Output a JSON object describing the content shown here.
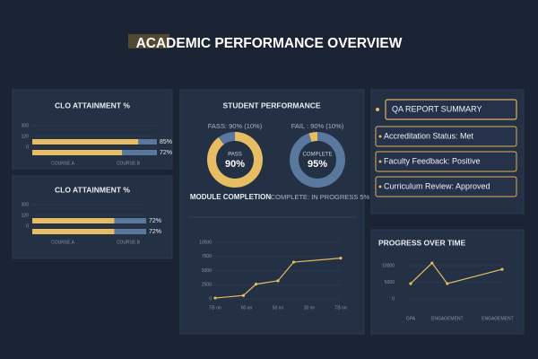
{
  "header": {
    "title": "ACADEMIC PERFORMANCE OVERVIEW"
  },
  "student_performance": {
    "title": "STUDENT PERFORMANCE"
  },
  "qa_summary": {
    "title": "QA REPORT SUMMARY",
    "items": [
      "Accreditation Status: Met",
      "Faculty Feedback: Positive",
      "Curriculum Review: Approved"
    ]
  },
  "chart_data": [
    {
      "type": "hbar",
      "title": "CLO ATTAINMENT %",
      "categories": [
        "COURSE A",
        "COURSE B"
      ],
      "values": [
        85,
        72
      ],
      "value_labels": [
        "85%",
        "72%"
      ],
      "xlim": [
        0,
        100
      ],
      "axis_labels": [
        "300",
        "120",
        "0"
      ],
      "color": "#e6bd62",
      "track_color": "#5a779d"
    },
    {
      "type": "hbar",
      "title": "CLO ATTAINMENT %",
      "categories": [
        "COURSE A",
        "COURSE B"
      ],
      "values": [
        72,
        72
      ],
      "value_labels": [
        "72%",
        "72%"
      ],
      "xlim": [
        0,
        100
      ],
      "axis_labels": [
        "300",
        "120",
        "0"
      ],
      "color": "#e6bd62",
      "track_color": "#5a779d"
    },
    {
      "type": "donut",
      "title": "FASS: 90% (10%)",
      "values": [
        90,
        10
      ],
      "colors": [
        "#e6bd62",
        "#5a779d"
      ],
      "center_label": "PASS",
      "center_value": "90%",
      "caption": "MODULE COMPLETION"
    },
    {
      "type": "donut",
      "title": "FAIL : 90% (10%)",
      "values": [
        95,
        5
      ],
      "colors": [
        "#5a779d",
        "#e6bd62"
      ],
      "center_label": "COMPLETE",
      "center_value": "95%",
      "caption": "COMPLETE: IN PROGRESS 5%"
    },
    {
      "type": "line",
      "x": [
        0,
        0.9,
        1.3,
        2,
        2.5,
        4
      ],
      "values": [
        150,
        600,
        2600,
        3200,
        6500,
        7200
      ],
      "xlim": [
        0,
        4
      ],
      "xticks": [
        {
          "value": 0,
          "label": "TB nn"
        },
        {
          "value": 1,
          "label": "60 nn"
        },
        {
          "value": 2,
          "label": "50 nn"
        },
        {
          "value": 3,
          "label": "30 nn"
        },
        {
          "value": 4,
          "label": "TB nn"
        }
      ],
      "ylim": [
        0,
        10000
      ],
      "yticks": [
        0,
        2500,
        5000,
        7500,
        10000
      ],
      "color": "#e6bd62",
      "grid": true
    },
    {
      "type": "line",
      "title": "PROGRESS OVER TIME",
      "x": [
        0,
        0.7,
        1.2,
        3
      ],
      "values": [
        4600,
        10800,
        4600,
        8900
      ],
      "xlim": [
        0,
        3
      ],
      "xticks": [
        {
          "value": 0,
          "label": "GPA"
        },
        {
          "value": 1.2,
          "label": "ENGAGEMENT"
        },
        {
          "value": 2.85,
          "label": "ENGAGEMENT"
        }
      ],
      "ylim": [
        0,
        10000
      ],
      "yticks": [
        0,
        5000,
        10000
      ],
      "color": "#e6bd62",
      "grid": true
    }
  ]
}
